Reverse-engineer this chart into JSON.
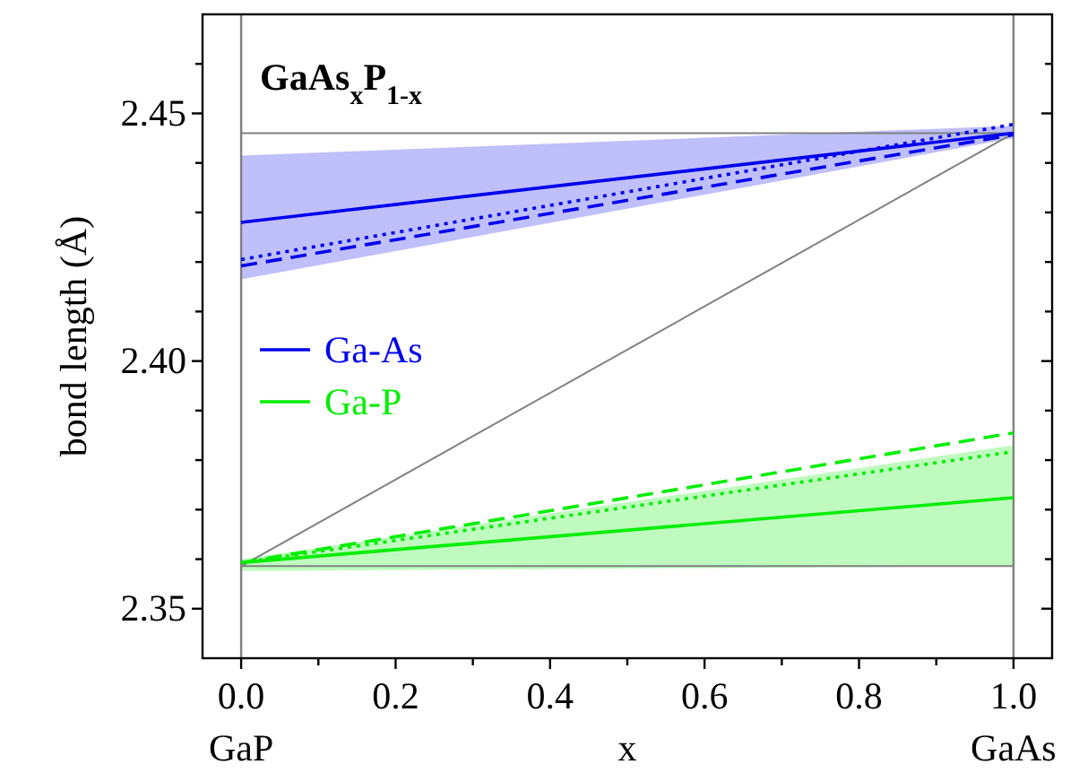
{
  "chart_data": {
    "type": "line",
    "title": "GaAs$_{x}$P$_{1-x}$",
    "xlabel": "x",
    "ylabel": "bond length  (Å)",
    "xlim": [
      -0.05,
      1.05
    ],
    "ylim": [
      2.34,
      2.47
    ],
    "xticks": [
      {
        "value": 0,
        "label": "0.0"
      },
      {
        "value": 0.1,
        "label": null
      },
      {
        "value": 0.2,
        "label": "0.2"
      },
      {
        "value": 0.3,
        "label": null
      },
      {
        "value": 0.4,
        "label": "0.4"
      },
      {
        "value": 0.5,
        "label": null
      },
      {
        "value": 0.6,
        "label": "0.6"
      },
      {
        "value": 0.7,
        "label": null
      },
      {
        "value": 0.8,
        "label": "0.8"
      },
      {
        "value": 0.9,
        "label": null
      },
      {
        "value": 1,
        "label": "1.0"
      }
    ],
    "yticks": [
      {
        "value": 2.35,
        "label": "2.35"
      },
      {
        "value": 2.36,
        "label": null
      },
      {
        "value": 2.37,
        "label": null
      },
      {
        "value": 2.38,
        "label": null
      },
      {
        "value": 2.39,
        "label": null
      },
      {
        "value": 2.4,
        "label": "2.40"
      },
      {
        "value": 2.41,
        "label": null
      },
      {
        "value": 2.42,
        "label": null
      },
      {
        "value": 2.43,
        "label": null
      },
      {
        "value": 2.44,
        "label": null
      },
      {
        "value": 2.45,
        "label": "2.45"
      },
      {
        "value": 2.46,
        "label": null
      }
    ],
    "grid": false,
    "legend": "left",
    "marker": "none",
    "ref_lines": [
      {
        "axis": "x",
        "value": 0,
        "color": "#808080"
      },
      {
        "axis": "x",
        "value": 1,
        "color": "#808080"
      }
    ],
    "annotations": [
      "GaP",
      "GaAs"
    ],
    "x": [
      0,
      1
    ],
    "series": [
      {
        "color": "#808080",
        "values": [
          2.446,
          2.446
        ],
        "line_style": "solid"
      },
      {
        "color": "#808080",
        "values": [
          2.3586,
          2.3586
        ],
        "line_style": "solid"
      },
      {
        "color": "#808080",
        "values": [
          2.3586,
          2.446
        ],
        "line_style": "solid"
      },
      {
        "name": "Ga-As",
        "color": "#0000ee",
        "values": [
          2.428,
          2.446
        ],
        "lower": [
          2.4165,
          2.445
        ],
        "upper": [
          2.4415,
          2.4475
        ],
        "line_style": "solid"
      },
      {
        "color": "#0000ee",
        "values": [
          2.4205,
          2.4478
        ],
        "line_style": "dotted"
      },
      {
        "color": "#0000ee",
        "values": [
          2.4192,
          2.4457
        ],
        "line_style": "dashed"
      },
      {
        "name": "Ga-P",
        "color": "#00ee00",
        "values": [
          2.3593,
          2.3724
        ],
        "lower": [
          2.3576,
          2.3586
        ],
        "upper": [
          2.36,
          2.383
        ],
        "line_style": "solid"
      },
      {
        "color": "#00ee00",
        "values": [
          2.3593,
          2.3817
        ],
        "line_style": "dotted"
      },
      {
        "color": "#00ee00",
        "values": [
          2.3593,
          2.3855
        ],
        "line_style": "dashed"
      }
    ]
  }
}
